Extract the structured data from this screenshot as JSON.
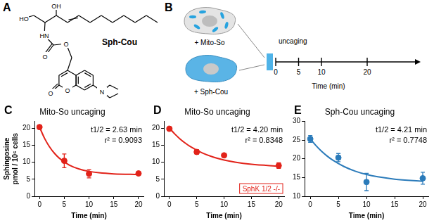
{
  "structure": {
    "panel": "A",
    "title": "Sph-Cou",
    "atom_labels": [
      "OH",
      "HO",
      "HN",
      "O",
      "O",
      "O",
      "O",
      "N"
    ]
  },
  "timeline": {
    "panel": "B",
    "treatments": [
      "+ Mito-So",
      "+ Sph-Cou"
    ],
    "event": "uncaging",
    "xlabel": "Time (min)",
    "xticks": [
      0,
      5,
      10,
      20
    ]
  },
  "chart_data": [
    {
      "panel": "C",
      "type": "scatter",
      "title": "Mito-So uncaging",
      "xlabel": "Time (min)",
      "ylabel": [
        "Sphingosine",
        "pmol / 10⁶ cells"
      ],
      "xlim": [
        -1,
        21
      ],
      "xticks": [
        0,
        5,
        10,
        15,
        20
      ],
      "ylim": [
        0,
        22
      ],
      "yticks": [
        0,
        5,
        10,
        15,
        20
      ],
      "grid": false,
      "color": "#e2231a",
      "annotations": [
        "t1/2 = 2.63 min",
        "r² = 0.9093"
      ],
      "series": [
        {
          "type": "scatter",
          "marker": "circle",
          "x": [
            0,
            5,
            10,
            20
          ],
          "values": [
            20.3,
            10.4,
            6.6,
            6.7
          ],
          "errors": [
            0.3,
            2.0,
            1.2,
            0.4
          ]
        },
        {
          "type": "line",
          "line_style": "solid",
          "x": [
            0,
            1,
            2,
            3,
            4,
            6,
            8,
            10,
            12,
            15,
            20
          ],
          "values": [
            20.3,
            17.06,
            14.56,
            12.64,
            11.17,
            9.18,
            8.0,
            7.3,
            6.89,
            6.57,
            6.37
          ]
        }
      ]
    },
    {
      "panel": "D",
      "type": "scatter",
      "title": "Mito-So uncaging",
      "xlabel": "Time (min)",
      "xlim": [
        -1,
        21
      ],
      "xticks": [
        0,
        5,
        10,
        15,
        20
      ],
      "ylim": [
        0,
        22
      ],
      "yticks": [
        0,
        5,
        10,
        15,
        20
      ],
      "grid": false,
      "color": "#e2231a",
      "annotations": [
        "t1/2 = 4.20 min",
        "r² = 0.8348"
      ],
      "label_box": "SphK 1/2 -/-",
      "series": [
        {
          "type": "scatter",
          "marker": "circle",
          "x": [
            0,
            5,
            10,
            20
          ],
          "values": [
            19.8,
            13.0,
            12.0,
            9.0
          ],
          "errors": [
            0.4,
            0.7,
            0.5,
            0.8
          ]
        },
        {
          "type": "line",
          "line_style": "solid",
          "x": [
            0,
            1,
            2,
            3,
            4,
            6,
            8,
            10,
            12,
            15,
            20
          ],
          "values": [
            20.0,
            18.24,
            16.74,
            15.48,
            14.4,
            12.72,
            11.5,
            10.63,
            10.0,
            9.37,
            8.83
          ]
        }
      ]
    },
    {
      "panel": "E",
      "type": "scatter",
      "title": "Sph-Cou uncaging",
      "xlabel": "Time (min)",
      "xlim": [
        -1,
        21
      ],
      "xticks": [
        0,
        5,
        10,
        15,
        20
      ],
      "ylim": [
        10,
        30
      ],
      "yticks": [
        10,
        15,
        20,
        25,
        30
      ],
      "grid": false,
      "color": "#2b7bba",
      "annotations": [
        "t1/2 = 4.21 min",
        "r² = 0.7748"
      ],
      "series": [
        {
          "type": "scatter",
          "marker": "circle",
          "x": [
            0,
            5,
            10,
            20
          ],
          "values": [
            25.3,
            20.3,
            13.8,
            14.8
          ],
          "errors": [
            0.9,
            1.1,
            2.3,
            1.6
          ]
        },
        {
          "type": "line",
          "line_style": "solid",
          "x": [
            0,
            1,
            2,
            3,
            4,
            6,
            8,
            10,
            12,
            15,
            20
          ],
          "values": [
            25.3,
            23.52,
            22.0,
            20.72,
            19.63,
            17.93,
            16.69,
            15.81,
            15.19,
            14.56,
            13.99
          ]
        }
      ]
    }
  ]
}
